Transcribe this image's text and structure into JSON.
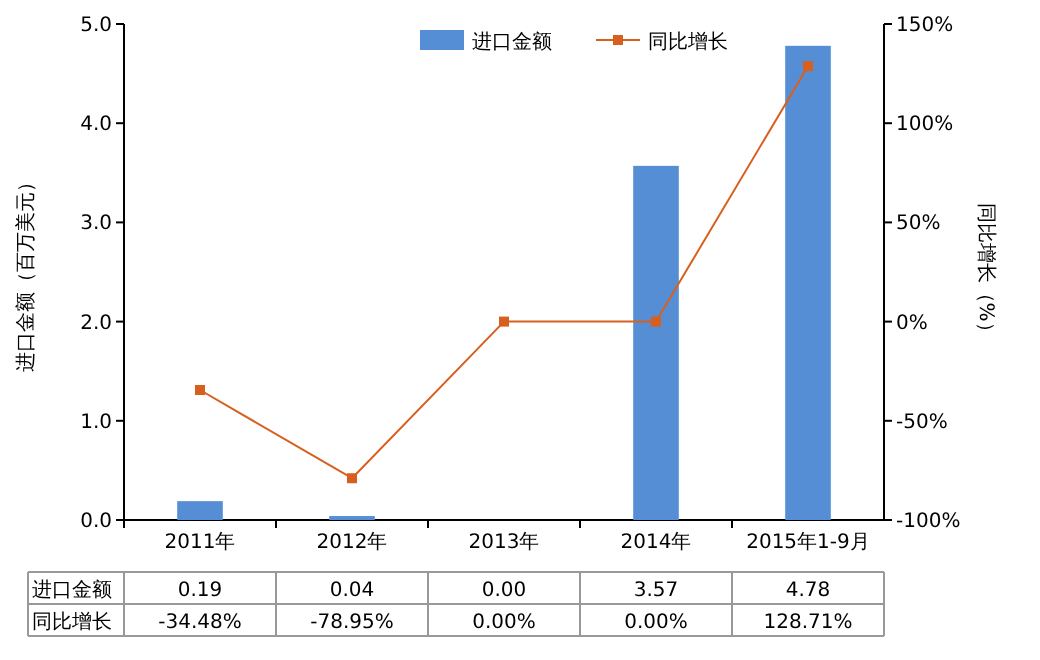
{
  "chart_data": {
    "type": "bar",
    "categories": [
      "2011年",
      "2012年",
      "2013年",
      "2014年",
      "2015年1-9月"
    ],
    "series": [
      {
        "name": "进口金额",
        "color": "#558ed5",
        "values": [
          0.19,
          0.04,
          0.0,
          3.57,
          4.78
        ],
        "value_labels": [
          "0.19",
          "0.04",
          "0.00",
          "3.57",
          "4.78"
        ]
      },
      {
        "name": "同比增长",
        "type": "line",
        "axis": "y2",
        "color": "#d8601e",
        "marker": "square",
        "values": [
          -34.48,
          -78.95,
          0.0,
          0.0,
          128.71
        ],
        "value_labels": [
          "-34.48%",
          "-78.95%",
          "0.00%",
          "0.00%",
          "128.71%"
        ]
      }
    ],
    "ylabel": "进口金额（百万美元）",
    "y2label": "同比增长（%）",
    "ylim": [
      0,
      5
    ],
    "yticks": [
      {
        "value": 0,
        "label": "0.0"
      },
      {
        "value": 1,
        "label": "1.0"
      },
      {
        "value": 2,
        "label": "2.0"
      },
      {
        "value": 3,
        "label": "3.0"
      },
      {
        "value": 4,
        "label": "4.0"
      },
      {
        "value": 5,
        "label": "5.0"
      }
    ],
    "y2lim": [
      -100,
      150
    ],
    "y2ticks": [
      {
        "value": -100,
        "label": "-100%"
      },
      {
        "value": -50,
        "label": "-50%"
      },
      {
        "value": 0,
        "label": "0%"
      },
      {
        "value": 50,
        "label": "50%"
      },
      {
        "value": 100,
        "label": "100%"
      },
      {
        "value": 150,
        "label": "150%"
      }
    ],
    "legend": "top right"
  }
}
